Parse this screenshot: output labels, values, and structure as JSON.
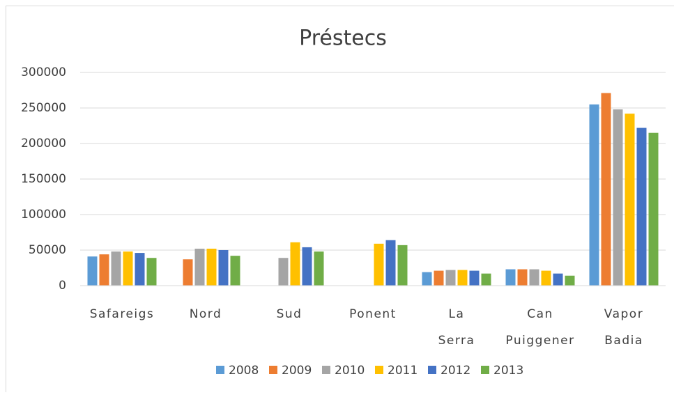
{
  "chart_data": {
    "type": "bar",
    "title": "Préstecs",
    "categories": [
      "Safareigs",
      "Nord",
      "Sud",
      "Ponent",
      "La Serra",
      "Can Puiggener",
      "Vapor Badia"
    ],
    "series": [
      {
        "name": "2008",
        "color": "#5b9bd5",
        "values": [
          41000,
          null,
          null,
          null,
          19000,
          23000,
          255000
        ]
      },
      {
        "name": "2009",
        "color": "#ed7d31",
        "values": [
          44000,
          37000,
          null,
          null,
          21000,
          23000,
          271000
        ]
      },
      {
        "name": "2010",
        "color": "#a5a5a5",
        "values": [
          48000,
          52000,
          39000,
          null,
          22000,
          23000,
          248000
        ]
      },
      {
        "name": "2011",
        "color": "#ffc000",
        "values": [
          48000,
          52000,
          61000,
          59000,
          22000,
          21000,
          242000
        ]
      },
      {
        "name": "2012",
        "color": "#4472c4",
        "values": [
          46000,
          50000,
          54000,
          64000,
          21000,
          17000,
          222000
        ]
      },
      {
        "name": "2013",
        "color": "#70ad47",
        "values": [
          39000,
          42000,
          48000,
          57000,
          17000,
          14000,
          215000
        ]
      }
    ],
    "ylim": [
      0,
      300000
    ],
    "yticks": [
      0,
      50000,
      100000,
      150000,
      200000,
      250000,
      300000
    ],
    "grid": true,
    "legend": "bottom"
  }
}
